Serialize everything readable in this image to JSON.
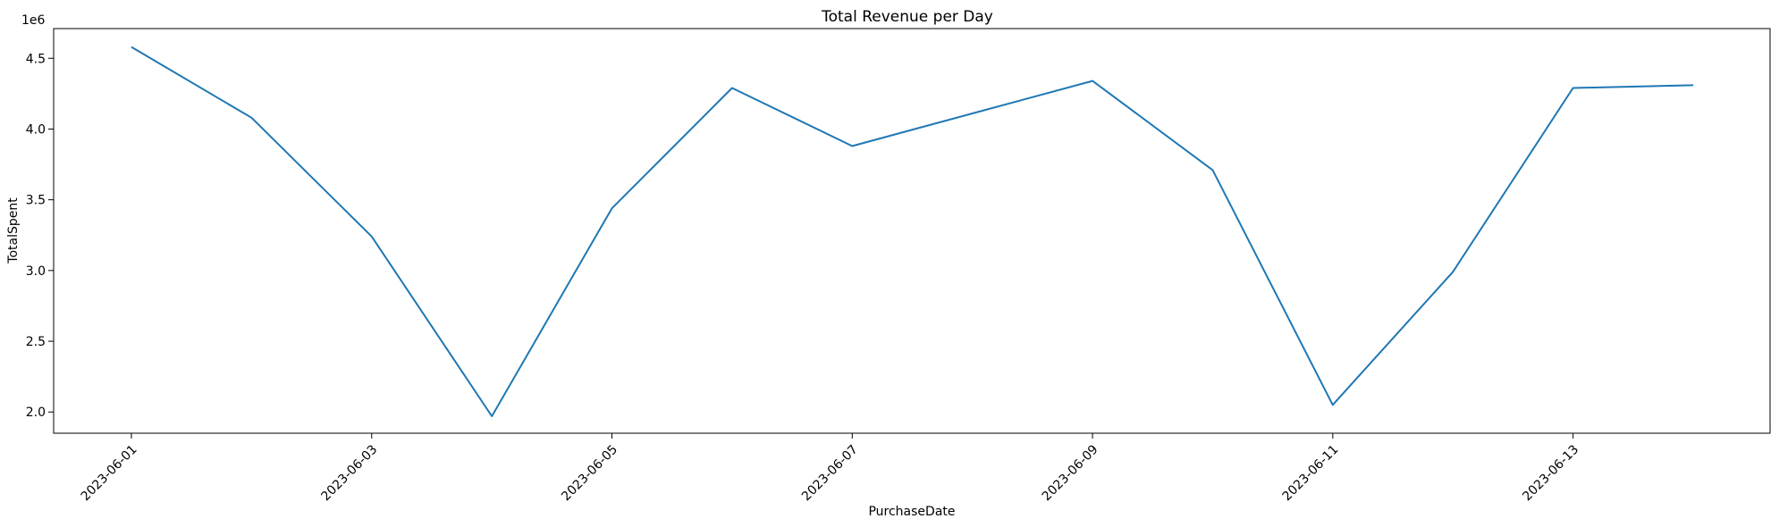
{
  "chart_data": {
    "type": "line",
    "title": "Total Revenue per Day",
    "xlabel": "PurchaseDate",
    "ylabel": "TotalSpent",
    "y_scale_label": "1e6",
    "y_scale": 1000000,
    "x": [
      "2023-06-01",
      "2023-06-02",
      "2023-06-03",
      "2023-06-04",
      "2023-06-05",
      "2023-06-06",
      "2023-06-07",
      "2023-06-08",
      "2023-06-09",
      "2023-06-10",
      "2023-06-11",
      "2023-06-12",
      "2023-06-13",
      "2023-06-14"
    ],
    "x_tick_labels": [
      "2023-06-01",
      "2023-06-03",
      "2023-06-05",
      "2023-06-07",
      "2023-06-09",
      "2023-06-11",
      "2023-06-13"
    ],
    "series": [
      {
        "color": "#1f77b4",
        "values": [
          4580000,
          4080000,
          3240000,
          1970000,
          3440000,
          4290000,
          3880000,
          4110000,
          4340000,
          3710000,
          2050000,
          2990000,
          4290000,
          4310000
        ]
      }
    ],
    "y_ticks": [
      2.0,
      2.5,
      3.0,
      3.5,
      4.0,
      4.5
    ],
    "y_tick_labels": [
      "2.0",
      "2.5",
      "3.0",
      "3.5",
      "4.0",
      "4.5"
    ],
    "ylim": [
      1850000,
      4710000
    ],
    "grid": false,
    "legend": "none"
  }
}
